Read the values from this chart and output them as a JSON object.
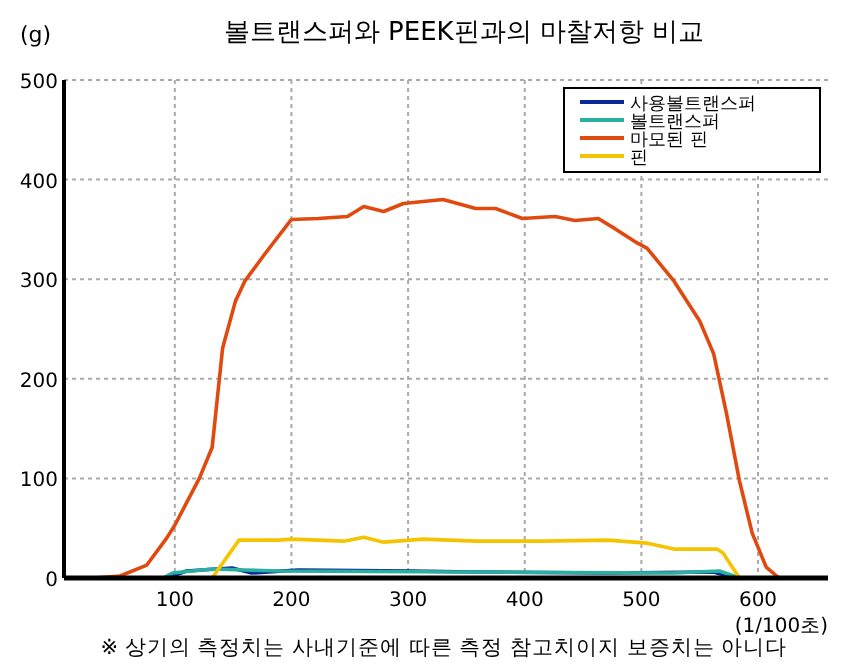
{
  "chart_data": {
    "type": "line",
    "title": "볼트랜스퍼와 PEEK핀과의 마찰저항 비교",
    "ylabel": "(g)",
    "xlabel": "(1/100초)",
    "annotations": [
      "※ 상기의 측정치는 사내기준에 따른 측정 참고치이지 보증치는 아니다"
    ],
    "xlim": [
      5,
      660
    ],
    "xticks": [
      100,
      200,
      300,
      400,
      500,
      600
    ],
    "ylim": [
      0,
      500
    ],
    "yticks": [
      0,
      100,
      200,
      300,
      400,
      500
    ],
    "grid": true,
    "legend": "top right",
    "line_style": "solid",
    "marker": "none",
    "series": [
      {
        "name": "사용볼트랜스퍼",
        "color": "#0a2a9a",
        "x": [
          93,
          110,
          149,
          166,
          206,
          302,
          358,
          471,
          562,
          580
        ],
        "values": [
          0,
          7,
          10,
          5,
          8,
          7,
          6,
          5,
          6,
          0
        ]
      },
      {
        "name": "볼트랜스퍼",
        "color": "#2ab0a0",
        "x": [
          90,
          98,
          132,
          160,
          189,
          528,
          567,
          584
        ],
        "values": [
          0,
          5,
          9,
          8,
          7,
          5,
          7,
          0
        ]
      },
      {
        "name": "마모된 핀",
        "color": "#e04a10",
        "x": [
          30,
          53,
          76,
          93,
          100,
          121,
          132,
          141,
          152,
          160,
          177,
          200,
          223,
          248,
          262,
          279,
          296,
          330,
          358,
          375,
          398,
          426,
          443,
          463,
          477,
          494,
          505,
          528,
          550,
          562,
          573,
          584,
          595,
          607,
          618
        ],
        "values": [
          0,
          2,
          13,
          40,
          53,
          100,
          131,
          231,
          278,
          298,
          325,
          360,
          361,
          363,
          373,
          368,
          376,
          380,
          371,
          371,
          361,
          363,
          359,
          361,
          351,
          338,
          331,
          298,
          258,
          225,
          165,
          98,
          45,
          11,
          0
        ]
      },
      {
        "name": "핀",
        "color": "#f5c400",
        "x": [
          90,
          132,
          155,
          189,
          200,
          245,
          262,
          279,
          313,
          358,
          415,
          471,
          505,
          528,
          565,
          570,
          584
        ],
        "values": [
          0,
          0,
          38,
          38,
          39,
          37,
          41,
          36,
          39,
          37,
          37,
          38,
          35,
          29,
          29,
          25,
          0
        ]
      }
    ]
  }
}
